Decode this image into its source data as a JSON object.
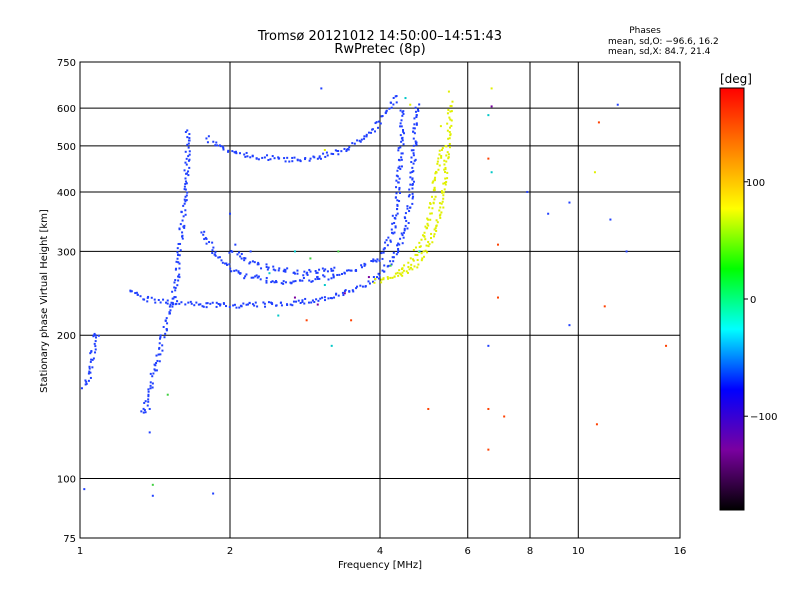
{
  "chart_data": {
    "type": "scatter",
    "title": "Tromsø 20121012 14:50:00–14:51:43",
    "subtitle": "RwPretec (8p)",
    "info": {
      "heading": "Phases",
      "line_o": "mean, sd,O: −96.6, 16.2",
      "line_x": "mean, sd,X:  84.7, 21.4"
    },
    "xlabel": "Frequency [MHz]",
    "ylabel": "Stationary phase Virtual Height [km]",
    "x_scale": "log",
    "y_scale": "log",
    "xlim": [
      1,
      16
    ],
    "ylim": [
      75,
      750
    ],
    "x_ticks": [
      1,
      2,
      4,
      6,
      8,
      10,
      16
    ],
    "y_ticks": [
      75,
      100,
      200,
      300,
      400,
      500,
      600,
      750
    ],
    "grid": true,
    "colorbar": {
      "label": "[deg]",
      "range": [
        -180,
        180
      ],
      "ticks": [
        100,
        0,
        -100
      ],
      "colors": [
        "#000000",
        "#7a00a0",
        "#0000ff",
        "#00ffff",
        "#00ff00",
        "#ffff00",
        "#ff8000",
        "#ff0000"
      ]
    },
    "series": [
      {
        "mode": "O",
        "phase": -100,
        "color": "#2040ff",
        "traces": [
          [
            [
              1.65,
              540
            ],
            [
              1.64,
              450
            ],
            [
              1.62,
              380
            ],
            [
              1.6,
              330
            ],
            [
              1.58,
              290
            ],
            [
              1.56,
              260
            ],
            [
              1.52,
              230
            ],
            [
              1.47,
              200
            ],
            [
              1.43,
              175
            ],
            [
              1.38,
              155
            ],
            [
              1.33,
              135
            ]
          ],
          [
            [
              1.25,
              250
            ],
            [
              1.32,
              240
            ],
            [
              1.45,
              235
            ],
            [
              1.7,
              232
            ],
            [
              2.0,
              231
            ],
            [
              2.4,
              232
            ],
            [
              2.8,
              235
            ],
            [
              3.2,
              240
            ],
            [
              3.6,
              250
            ],
            [
              3.9,
              262
            ],
            [
              4.2,
              285
            ],
            [
              4.45,
              320
            ],
            [
              4.6,
              380
            ],
            [
              4.65,
              450
            ],
            [
              4.7,
              520
            ],
            [
              4.75,
              620
            ]
          ],
          [
            [
              1.75,
              330
            ],
            [
              1.9,
              290
            ],
            [
              2.1,
              268
            ],
            [
              2.5,
              258
            ],
            [
              3.0,
              262
            ],
            [
              3.5,
              272
            ],
            [
              4.0,
              290
            ],
            [
              4.25,
              330
            ],
            [
              4.35,
              400
            ],
            [
              4.4,
              480
            ],
            [
              4.45,
              600
            ]
          ],
          [
            [
              1.8,
              520
            ],
            [
              1.9,
              495
            ],
            [
              2.2,
              475
            ],
            [
              2.6,
              468
            ],
            [
              3.0,
              472
            ],
            [
              3.4,
              490
            ],
            [
              3.8,
              530
            ],
            [
              4.1,
              580
            ],
            [
              4.35,
              645
            ]
          ],
          [
            [
              2.0,
              300
            ],
            [
              2.3,
              280
            ],
            [
              2.8,
              270
            ],
            [
              3.3,
              275
            ]
          ],
          [
            [
              1.02,
              155
            ],
            [
              1.05,
              165
            ],
            [
              1.07,
              200
            ],
            [
              1.09,
              197
            ]
          ]
        ],
        "scatter": [
          [
            1.02,
            95
          ],
          [
            1.4,
            92
          ],
          [
            1.85,
            93
          ],
          [
            1.38,
            125
          ],
          [
            1.38,
            140
          ],
          [
            2.0,
            360
          ],
          [
            2.05,
            310
          ],
          [
            2.1,
            270
          ],
          [
            2.2,
            300
          ],
          [
            3.05,
            660
          ],
          [
            3.3,
            480
          ],
          [
            6.6,
            190
          ],
          [
            7.9,
            400
          ],
          [
            8.7,
            360
          ],
          [
            9.6,
            380
          ],
          [
            9.6,
            210
          ],
          [
            11.6,
            350
          ],
          [
            12.5,
            300
          ],
          [
            12.0,
            610
          ]
        ]
      },
      {
        "mode": "X",
        "phase": 90,
        "color": "#e0f000",
        "traces": [
          [
            [
              3.9,
              260
            ],
            [
              4.1,
              262
            ],
            [
              4.4,
              268
            ],
            [
              4.7,
              280
            ],
            [
              4.95,
              300
            ],
            [
              5.15,
              330
            ],
            [
              5.3,
              370
            ],
            [
              5.4,
              420
            ],
            [
              5.45,
              480
            ],
            [
              5.5,
              540
            ],
            [
              5.55,
              620
            ]
          ],
          [
            [
              4.3,
              268
            ],
            [
              4.6,
              285
            ],
            [
              4.9,
              320
            ],
            [
              5.1,
              380
            ],
            [
              5.2,
              440
            ],
            [
              5.3,
              500
            ]
          ]
        ],
        "scatter": [
          [
            5.5,
            650
          ],
          [
            5.3,
            550
          ],
          [
            6.7,
            660
          ],
          [
            3.1,
            490
          ],
          [
            4.6,
            610
          ],
          [
            10.8,
            440
          ]
        ]
      },
      {
        "mode": "mixed",
        "phase": 0,
        "color": "#00c8c8",
        "traces": [],
        "scatter": [
          [
            2.4,
            270
          ],
          [
            2.7,
            300
          ],
          [
            3.1,
            255
          ],
          [
            2.5,
            220
          ],
          [
            4.5,
            630
          ],
          [
            6.6,
            580
          ],
          [
            6.7,
            440
          ],
          [
            4.8,
            300
          ],
          [
            3.2,
            190
          ]
        ]
      },
      {
        "mode": "mixed",
        "phase": 150,
        "color": "#ff4000",
        "traces": [],
        "scatter": [
          [
            2.85,
            215
          ],
          [
            6.6,
            470
          ],
          [
            6.6,
            140
          ],
          [
            6.6,
            115
          ],
          [
            7.1,
            135
          ],
          [
            11.0,
            560
          ],
          [
            11.3,
            230
          ],
          [
            10.9,
            130
          ],
          [
            15.0,
            190
          ],
          [
            3.5,
            215
          ],
          [
            5.0,
            140
          ],
          [
            6.9,
            240
          ],
          [
            6.9,
            310
          ]
        ]
      },
      {
        "mode": "mixed",
        "phase": -150,
        "color": "#7a00a0",
        "traces": [],
        "scatter": [
          [
            3.0,
            232
          ],
          [
            3.4,
            245
          ],
          [
            2.7,
            240
          ],
          [
            3.8,
            265
          ],
          [
            6.7,
            605
          ]
        ]
      },
      {
        "mode": "mixed",
        "phase": 60,
        "color": "#40d040",
        "traces": [],
        "scatter": [
          [
            1.4,
            97
          ],
          [
            1.5,
            150
          ],
          [
            2.9,
            290
          ],
          [
            3.3,
            300
          ],
          [
            4.2,
            280
          ]
        ]
      }
    ]
  }
}
